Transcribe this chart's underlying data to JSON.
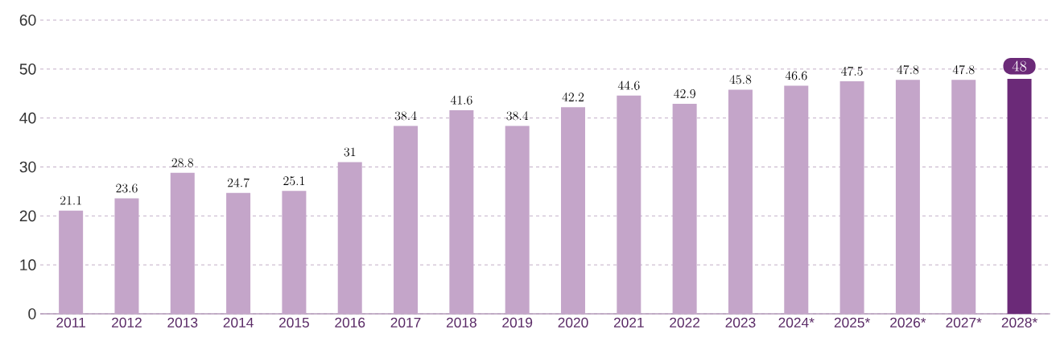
{
  "chart_data": {
    "type": "bar",
    "categories": [
      "2011",
      "2012",
      "2013",
      "2014",
      "2015",
      "2016",
      "2017",
      "2018",
      "2019",
      "2020",
      "2021",
      "2022",
      "2023",
      "2024*",
      "2025*",
      "2026*",
      "2027*",
      "2028*"
    ],
    "values": [
      21.1,
      23.6,
      28.8,
      24.7,
      25.1,
      31,
      38.4,
      41.6,
      38.4,
      42.2,
      44.6,
      42.9,
      45.8,
      46.6,
      47.5,
      47.8,
      47.8,
      48
    ],
    "colors": [
      "#c4a5c9",
      "#c4a5c9",
      "#c4a5c9",
      "#c4a5c9",
      "#c4a5c9",
      "#c4a5c9",
      "#c4a5c9",
      "#c4a5c9",
      "#c4a5c9",
      "#c4a5c9",
      "#c4a5c9",
      "#c4a5c9",
      "#c4a5c9",
      "#c4a5c9",
      "#c4a5c9",
      "#c4a5c9",
      "#c4a5c9",
      "#6b2a78"
    ],
    "ylim": [
      0,
      60
    ],
    "yticks": [
      0,
      10,
      20,
      30,
      40,
      50,
      60
    ],
    "grid": "y",
    "data_labels": true
  }
}
